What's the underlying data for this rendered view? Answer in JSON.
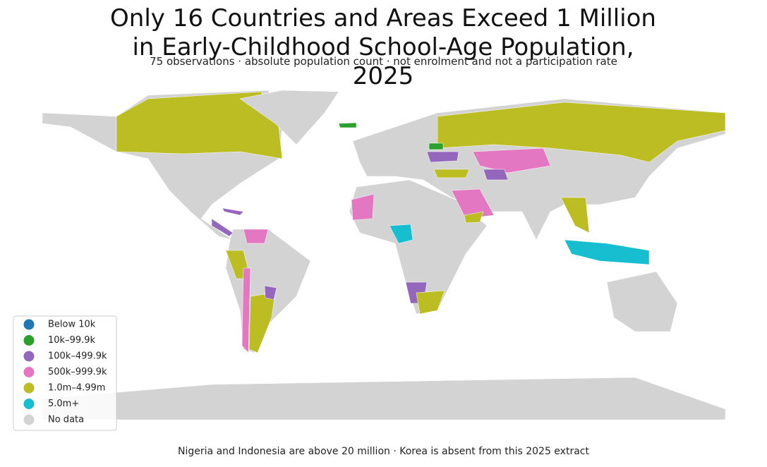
{
  "title": "Only 16 Countries and Areas Exceed 1 Million in Early-Childhood School-Age Population, 2025",
  "subtitle": "75 observations · absolute population count · not enrolment and not a participation rate",
  "note": "Nigeria and Indonesia are above 20 million · Korea is absent from this 2025 extract",
  "legend": {
    "location": "lower left",
    "items": [
      {
        "label": "Below 10k",
        "color": "#1f77b4"
      },
      {
        "label": "10k–99.9k",
        "color": "#2ca02c"
      },
      {
        "label": "100k–499.9k",
        "color": "#9467bd"
      },
      {
        "label": "500k–999.9k",
        "color": "#e377c2"
      },
      {
        "label": "1.0m–4.99m",
        "color": "#bcbd22"
      },
      {
        "label": "5.0m+",
        "color": "#17becf"
      },
      {
        "label": "No data",
        "color": "#d3d3d3"
      }
    ]
  }
}
